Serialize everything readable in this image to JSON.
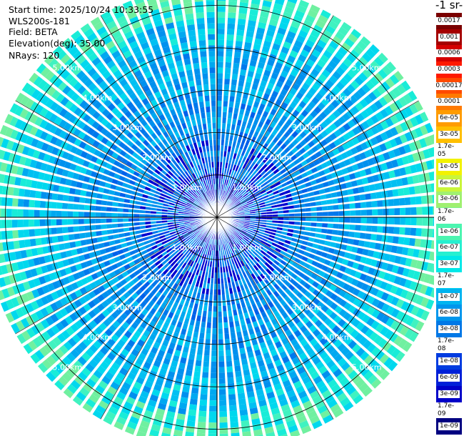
{
  "info": {
    "start_time": "Start time: 2025/10/24 10:33:55",
    "instrument": "WLS200s-181",
    "field": "Field: BETA",
    "elevation": "Elevation(deg): 35.00",
    "nrays": "NRays: 120"
  },
  "colorbar": {
    "unit_label": "-1 sr-",
    "entries": [
      {
        "label": "0.0017",
        "color": "#7a0000"
      },
      {
        "label": "0.001",
        "color": "#a50000"
      },
      {
        "label": "0.0006",
        "color": "#d40000"
      },
      {
        "label": "0.0003",
        "color": "#ff1a00"
      },
      {
        "label": "0.00017",
        "color": "#ff4a00"
      },
      {
        "label": "0.0001",
        "color": "#ff7a00"
      },
      {
        "label": "6e-05",
        "color": "#ff9c00"
      },
      {
        "label": "3e-05",
        "color": "#ffbf00"
      },
      {
        "label": "1.7e-05",
        "color": "#ffe000"
      },
      {
        "label": "1e-05",
        "color": "#f2f200"
      },
      {
        "label": "6e-06",
        "color": "#c9f53a"
      },
      {
        "label": "3e-06",
        "color": "#a0f070"
      },
      {
        "label": "1.7e-06",
        "color": "#7ff08f"
      },
      {
        "label": "1e-06",
        "color": "#4cf5b0"
      },
      {
        "label": "6e-07",
        "color": "#26f0d0"
      },
      {
        "label": "3e-07",
        "color": "#00e8e8"
      },
      {
        "label": "1.7e-07",
        "color": "#00d0f2"
      },
      {
        "label": "1e-07",
        "color": "#00b4f0"
      },
      {
        "label": "6e-08",
        "color": "#0096ec"
      },
      {
        "label": "3e-08",
        "color": "#0078e6"
      },
      {
        "label": "1.7e-08",
        "color": "#005ae0"
      },
      {
        "label": "1e-08",
        "color": "#003ce0"
      },
      {
        "label": "6e-09",
        "color": "#0020d8"
      },
      {
        "label": "3e-09",
        "color": "#0000c8"
      },
      {
        "label": "1.7e-09",
        "color": "#0000a0"
      },
      {
        "label": "1e-09",
        "color": "#000080"
      }
    ]
  },
  "chart_data": {
    "type": "heatmap",
    "projection": "polar-ppi",
    "n_rays": 120,
    "range_rings_km": [
      1,
      2,
      3,
      4,
      5
    ],
    "ring_labels": [
      "1.00km",
      "2.00km",
      "3.00km",
      "4.00km",
      "5.00km"
    ],
    "max_range_km": 5.5,
    "colors": {
      "background_scan": "#0a6ee8",
      "ring": "#000000",
      "spoke": "#ffffff",
      "near_range_values": "#0000e0",
      "far_range_values": "#20f0c8"
    }
  }
}
